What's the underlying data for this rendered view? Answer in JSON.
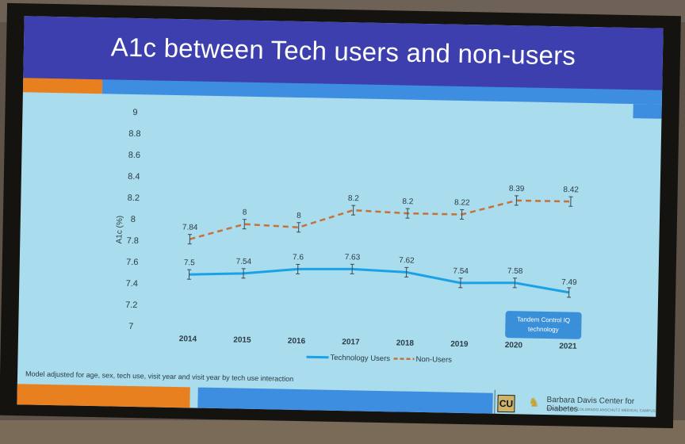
{
  "slide": {
    "title": "A1c between Tech users and non-users",
    "callout": [
      "Tandem Control IQ",
      "technology"
    ],
    "footnote": "Model adjusted for age, sex, tech use, visit year and visit year by tech use interaction",
    "footer": {
      "center_name": "Barbara Davis Center for Diabetes",
      "center_sub": "UNIVERSITY OF COLORADO ANSCHUTZ MEDICAL CAMPUS",
      "logo_text": "CU"
    }
  },
  "colors": {
    "title_bar": "#3c3fad",
    "slide_bg": "#a9dcec",
    "accent_orange": "#e9801f",
    "accent_blue": "#3d8de0",
    "tech_users": "#1ba2e6",
    "non_users": "#c8703a"
  },
  "icons": {
    "logo": "cu-logo-icon",
    "mascot": "buffalo-mascot-icon"
  },
  "chart_data": {
    "type": "line",
    "title": "A1c between Tech users and non-users",
    "xlabel": "",
    "ylabel": "A1c (%)",
    "categories": [
      "2014",
      "2015",
      "2016",
      "2017",
      "2018",
      "2019",
      "2020",
      "2021"
    ],
    "ylim": [
      7,
      9
    ],
    "yticks": [
      "7",
      "7.2",
      "7.4",
      "7.6",
      "7.8",
      "8",
      "8.2",
      "8.4",
      "8.6",
      "8.8",
      "9"
    ],
    "grid": false,
    "legend": "bottom",
    "series": [
      {
        "name": "Technology Users",
        "style": "solid",
        "values": [
          7.5,
          7.54,
          7.6,
          7.63,
          7.62,
          7.54,
          7.58,
          7.49
        ],
        "labels": [
          "7.5",
          "7.54",
          "7.6",
          "7.63",
          "7.62",
          "7.54",
          "7.58",
          "7.49"
        ],
        "plotted": [
          7.49,
          7.51,
          7.56,
          7.57,
          7.55,
          7.46,
          7.47,
          7.39
        ]
      },
      {
        "name": "Non-Users",
        "style": "dashed",
        "values": [
          7.84,
          8,
          8,
          8.2,
          8.2,
          8.22,
          8.39,
          8.42
        ],
        "labels": [
          "7.84",
          "8",
          "8",
          "8.2",
          "8.2",
          "8.22",
          "8.39",
          "8.42"
        ],
        "plotted": [
          7.82,
          7.97,
          7.95,
          8.12,
          8.1,
          8.1,
          8.24,
          8.24
        ]
      }
    ]
  }
}
